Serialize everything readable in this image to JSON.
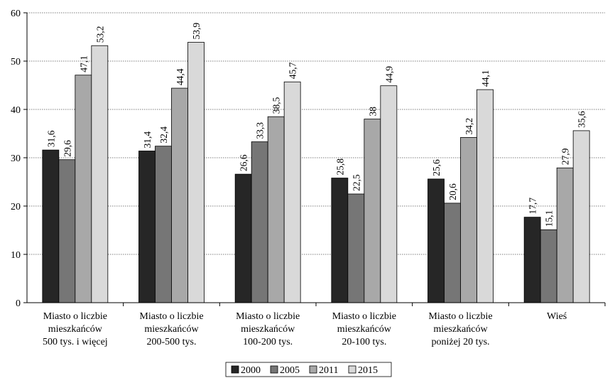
{
  "chart_data": {
    "type": "bar",
    "categories": [
      [
        "Miasto o liczbie",
        "mieszkańców",
        "500 tys. i więcej"
      ],
      [
        "Miasto o liczbie",
        "mieszkańców",
        "200-500 tys."
      ],
      [
        "Miasto o liczbie",
        "mieszkańców",
        "100-200 tys."
      ],
      [
        "Miasto o liczbie",
        "mieszkańców",
        "20-100 tys."
      ],
      [
        "Miasto o liczbie",
        "mieszkańców",
        "poniżej 20 tys."
      ],
      [
        "Wieś"
      ]
    ],
    "series": [
      {
        "name": "2000",
        "color": "#262626",
        "values": [
          31.6,
          31.4,
          26.6,
          25.8,
          25.6,
          17.7
        ],
        "labels": [
          "31,6",
          "31,4",
          "26,6",
          "25,8",
          "25,6",
          "17,7"
        ]
      },
      {
        "name": "2005",
        "color": "#767676",
        "values": [
          29.6,
          32.4,
          33.3,
          22.5,
          20.6,
          15.1
        ],
        "labels": [
          "29,6",
          "32,4",
          "33,3",
          "22,5",
          "20,6",
          "15,1"
        ]
      },
      {
        "name": "2011",
        "color": "#a8a8a8",
        "values": [
          47.1,
          44.4,
          38.5,
          38,
          34.2,
          27.9
        ],
        "labels": [
          "47,1",
          "44,4",
          "38,5",
          "38",
          "34,2",
          "27,9"
        ]
      },
      {
        "name": "2015",
        "color": "#d9d9d9",
        "values": [
          53.2,
          53.9,
          45.7,
          44.9,
          44.1,
          35.6
        ],
        "labels": [
          "53,2",
          "53,9",
          "45,7",
          "44,9",
          "44,1",
          "35,6"
        ]
      }
    ],
    "yticks": [
      "0",
      "10",
      "20",
      "30",
      "40",
      "50",
      "60"
    ],
    "ylim": [
      0,
      60
    ],
    "grid": true,
    "legend_position": "bottom-center"
  }
}
